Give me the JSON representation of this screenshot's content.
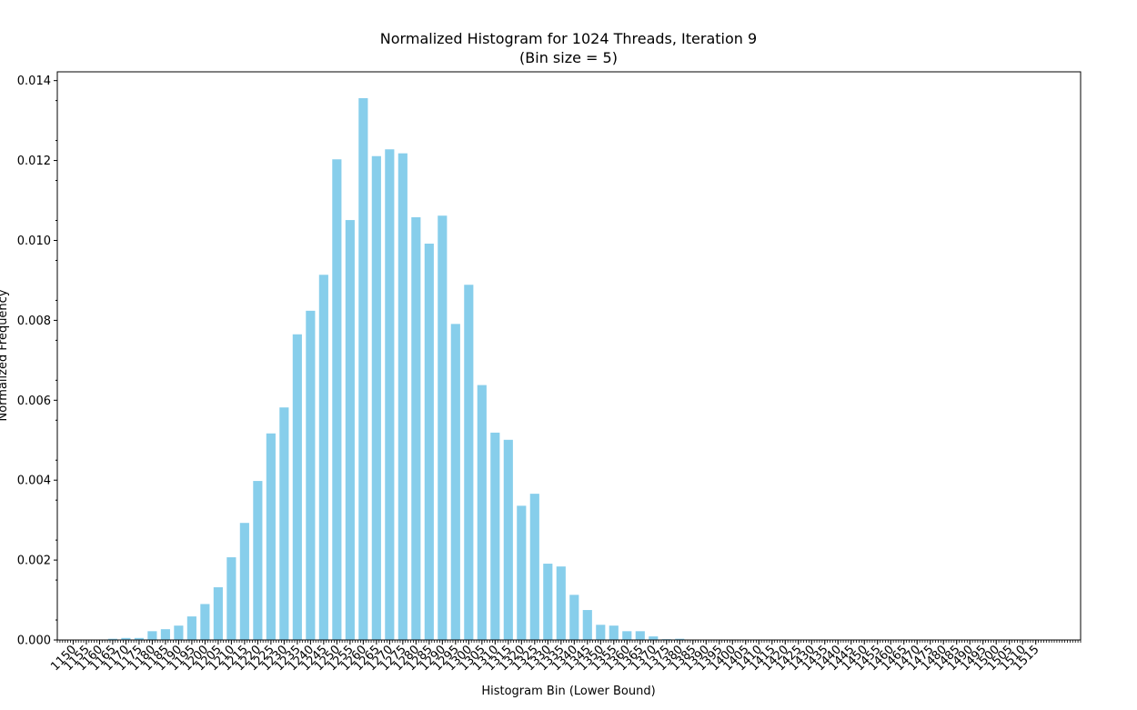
{
  "chart_data": {
    "type": "bar",
    "title": "Normalized Histogram for 1024 Threads, Iteration 9",
    "subtitle": "(Bin size = 5)",
    "xlabel": "Histogram Bin (Lower Bound)",
    "ylabel": "Normalized Frequency",
    "bin_size": 5,
    "x_tick_labels": [
      "1150",
      "1155",
      "1160",
      "1165",
      "1170",
      "1175",
      "1180",
      "1185",
      "1190",
      "1195",
      "1200",
      "1205",
      "1210",
      "1215",
      "1220",
      "1225",
      "1230",
      "1235",
      "1240",
      "1245",
      "1250",
      "1255",
      "1260",
      "1265",
      "1270",
      "1275",
      "1280",
      "1285",
      "1290",
      "1295",
      "1300",
      "1305",
      "1310",
      "1315",
      "1320",
      "1325",
      "1330",
      "1335",
      "1340",
      "1345",
      "1350",
      "1355",
      "1360",
      "1365",
      "1370",
      "1375",
      "1380",
      "1385",
      "1390",
      "1395",
      "1400",
      "1405",
      "1410",
      "1415",
      "1420",
      "1425",
      "1430",
      "1435",
      "1440",
      "1445",
      "1450",
      "1455",
      "1460",
      "1465",
      "1470",
      "1475",
      "1480",
      "1485",
      "1490",
      "1495",
      "1500",
      "1505",
      "1510",
      "1515"
    ],
    "y_tick_labels": [
      "0.000",
      "0.002",
      "0.004",
      "0.006",
      "0.008",
      "0.010",
      "0.012",
      "0.014"
    ],
    "y_ticks": [
      0,
      0.002,
      0.004,
      0.006,
      0.008,
      0.01,
      0.012,
      0.014
    ],
    "ylim": [
      0,
      0.01422
    ],
    "bin_range": [
      1144,
      1532
    ],
    "bars": [
      {
        "bin": 1165,
        "value": 3e-05
      },
      {
        "bin": 1170,
        "value": 5e-05
      },
      {
        "bin": 1175,
        "value": 5e-05
      },
      {
        "bin": 1180,
        "value": 0.00022
      },
      {
        "bin": 1185,
        "value": 0.00027
      },
      {
        "bin": 1190,
        "value": 0.00036
      },
      {
        "bin": 1195,
        "value": 0.00059
      },
      {
        "bin": 1200,
        "value": 0.0009
      },
      {
        "bin": 1205,
        "value": 0.00132
      },
      {
        "bin": 1210,
        "value": 0.00207
      },
      {
        "bin": 1215,
        "value": 0.00293
      },
      {
        "bin": 1220,
        "value": 0.00398
      },
      {
        "bin": 1225,
        "value": 0.00517
      },
      {
        "bin": 1230,
        "value": 0.00582
      },
      {
        "bin": 1235,
        "value": 0.00765
      },
      {
        "bin": 1240,
        "value": 0.00824
      },
      {
        "bin": 1245,
        "value": 0.00914
      },
      {
        "bin": 1250,
        "value": 0.01203
      },
      {
        "bin": 1255,
        "value": 0.01051
      },
      {
        "bin": 1260,
        "value": 0.01356
      },
      {
        "bin": 1265,
        "value": 0.01211
      },
      {
        "bin": 1270,
        "value": 0.01228
      },
      {
        "bin": 1275,
        "value": 0.01218
      },
      {
        "bin": 1280,
        "value": 0.01058
      },
      {
        "bin": 1285,
        "value": 0.00992
      },
      {
        "bin": 1290,
        "value": 0.01062
      },
      {
        "bin": 1295,
        "value": 0.00791
      },
      {
        "bin": 1300,
        "value": 0.00889
      },
      {
        "bin": 1305,
        "value": 0.00638
      },
      {
        "bin": 1310,
        "value": 0.00519
      },
      {
        "bin": 1315,
        "value": 0.00501
      },
      {
        "bin": 1320,
        "value": 0.00336
      },
      {
        "bin": 1325,
        "value": 0.00366
      },
      {
        "bin": 1330,
        "value": 0.00191
      },
      {
        "bin": 1335,
        "value": 0.00184
      },
      {
        "bin": 1340,
        "value": 0.00113
      },
      {
        "bin": 1345,
        "value": 0.00075
      },
      {
        "bin": 1350,
        "value": 0.00038
      },
      {
        "bin": 1355,
        "value": 0.00036
      },
      {
        "bin": 1360,
        "value": 0.00022
      },
      {
        "bin": 1365,
        "value": 0.00022
      },
      {
        "bin": 1370,
        "value": 9e-05
      },
      {
        "bin": 1375,
        "value": 2e-05
      },
      {
        "bin": 1380,
        "value": 3e-05
      }
    ],
    "bar_color": "#87ceeb",
    "grid": false,
    "legend": "none"
  }
}
